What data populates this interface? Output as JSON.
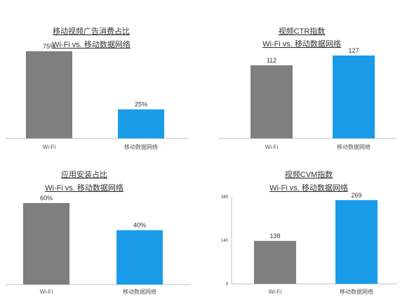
{
  "colors": {
    "wifi": "#7f7f7f",
    "mobile": "#1a9be8",
    "axis": "#bfbfbf",
    "text": "#333333"
  },
  "chart_data": [
    {
      "type": "bar",
      "title": "移动视频广告消费占比",
      "subtitle": "Wi-Fi vs. 移动数据网络",
      "categories": [
        "Wi-Fi",
        "移动数据网络"
      ],
      "values": [
        75,
        25
      ],
      "value_labels": [
        "75%",
        "25%"
      ],
      "ylim": [
        0,
        75
      ],
      "grid": false
    },
    {
      "type": "bar",
      "title": "视频CTR指数",
      "subtitle": "Wi-Fi vs. 移动数据网络",
      "categories": [
        "Wi-Fi",
        "移动数据网络"
      ],
      "values": [
        112,
        127
      ],
      "value_labels": [
        "112",
        "127"
      ],
      "ylim": [
        0,
        127
      ],
      "grid": false
    },
    {
      "type": "bar",
      "title": "应用安装占比",
      "subtitle": "Wi-Fi vs. 移动数据网络",
      "categories": [
        "Wi-Fi",
        "移动数据网络"
      ],
      "values": [
        60,
        40
      ],
      "value_labels": [
        "60%",
        "40%"
      ],
      "ylim": [
        0,
        60
      ],
      "grid": false
    },
    {
      "type": "bar",
      "title": "视频CVM指数",
      "subtitle": "Wi-Fi vs. 移动数据网络",
      "categories": [
        "Wi-Fi",
        "移动数据网络"
      ],
      "values": [
        138,
        269
      ],
      "value_labels": [
        "138",
        "269"
      ],
      "ylim": [
        0,
        280
      ],
      "yticks": [
        "0",
        "140",
        "280"
      ],
      "grid": false
    }
  ]
}
